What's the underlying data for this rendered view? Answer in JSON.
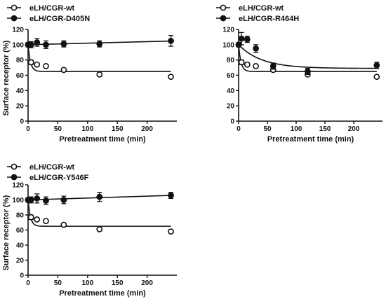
{
  "chart_data": [
    {
      "type": "scatter",
      "xlabel": "Pretreatment time (min)",
      "ylabel": "Surface receptor (%)",
      "xlim": [
        0,
        250
      ],
      "ylim": [
        0,
        120
      ],
      "xticks": [
        "0",
        "50",
        "100",
        "150",
        "200"
      ],
      "yticks": [
        "0",
        "20",
        "40",
        "60",
        "80",
        "100",
        "120"
      ],
      "legend_position": "top-left (above plot)",
      "series": [
        {
          "name": "eLH/CGR-wt",
          "marker": "open circle",
          "x": [
            0,
            5,
            15,
            30,
            60,
            120,
            240
          ],
          "y": [
            100,
            77,
            74,
            72,
            67,
            61,
            58
          ],
          "err": [
            2,
            3,
            2,
            2,
            2,
            2,
            1
          ],
          "fit": {
            "model": "one-phase decay",
            "plateau": 65,
            "k": 0.25
          }
        },
        {
          "name": "eLH/CGR-D405N",
          "marker": "filled circle",
          "x": [
            0,
            5,
            15,
            30,
            60,
            120,
            240
          ],
          "y": [
            100,
            100,
            103,
            100,
            101,
            101,
            105
          ],
          "err": [
            3,
            4,
            5,
            5,
            4,
            4,
            7
          ],
          "fit": {
            "model": "linear",
            "y0": 100,
            "slope": 0.02
          }
        }
      ]
    },
    {
      "type": "scatter",
      "xlabel": "Pretreatment time (min)",
      "ylabel": "",
      "xlim": [
        0,
        250
      ],
      "ylim": [
        0,
        120
      ],
      "xticks": [
        "0",
        "50",
        "100",
        "150",
        "200"
      ],
      "yticks": [
        "0",
        "20",
        "40",
        "60",
        "80",
        "100",
        "120"
      ],
      "legend_position": "top-left (above plot)",
      "series": [
        {
          "name": "eLH/CGR-wt",
          "marker": "open circle",
          "x": [
            0,
            5,
            15,
            30,
            60,
            120,
            240
          ],
          "y": [
            100,
            77,
            74,
            72,
            67,
            61,
            58
          ],
          "err": [
            2,
            3,
            2,
            2,
            2,
            2,
            1
          ],
          "fit": {
            "model": "one-phase decay",
            "plateau": 65,
            "k": 0.25
          }
        },
        {
          "name": "eLH/CGR-R464H",
          "marker": "filled circle",
          "x": [
            0,
            5,
            15,
            30,
            60,
            120,
            240
          ],
          "y": [
            100,
            108,
            107,
            95,
            72,
            65,
            73
          ],
          "err": [
            3,
            8,
            4,
            5,
            4,
            4,
            4
          ],
          "fit": {
            "model": "one-phase decay",
            "plateau": 69,
            "k": 0.025
          }
        }
      ]
    },
    {
      "type": "scatter",
      "xlabel": "Pretreatment time (min)",
      "ylabel": "Surface receptor (%)",
      "xlim": [
        0,
        250
      ],
      "ylim": [
        0,
        120
      ],
      "xticks": [
        "0",
        "50",
        "100",
        "150",
        "200"
      ],
      "yticks": [
        "0",
        "20",
        "40",
        "60",
        "80",
        "100",
        "120"
      ],
      "legend_position": "top-left (above plot)",
      "series": [
        {
          "name": "eLH/CGR-wt",
          "marker": "open circle",
          "x": [
            0,
            5,
            15,
            30,
            60,
            120,
            240
          ],
          "y": [
            100,
            77,
            74,
            72,
            67,
            61,
            58
          ],
          "err": [
            2,
            3,
            2,
            2,
            2,
            2,
            1
          ],
          "fit": {
            "model": "one-phase decay",
            "plateau": 65,
            "k": 0.25
          }
        },
        {
          "name": "eLH/CGR-Y546F",
          "marker": "filled circle",
          "x": [
            0,
            5,
            15,
            30,
            60,
            120,
            240
          ],
          "y": [
            100,
            100,
            102,
            99,
            100,
            104,
            106
          ],
          "err": [
            3,
            4,
            6,
            5,
            5,
            6,
            4
          ],
          "fit": {
            "model": "linear",
            "y0": 100,
            "slope": 0.025
          }
        }
      ]
    }
  ]
}
